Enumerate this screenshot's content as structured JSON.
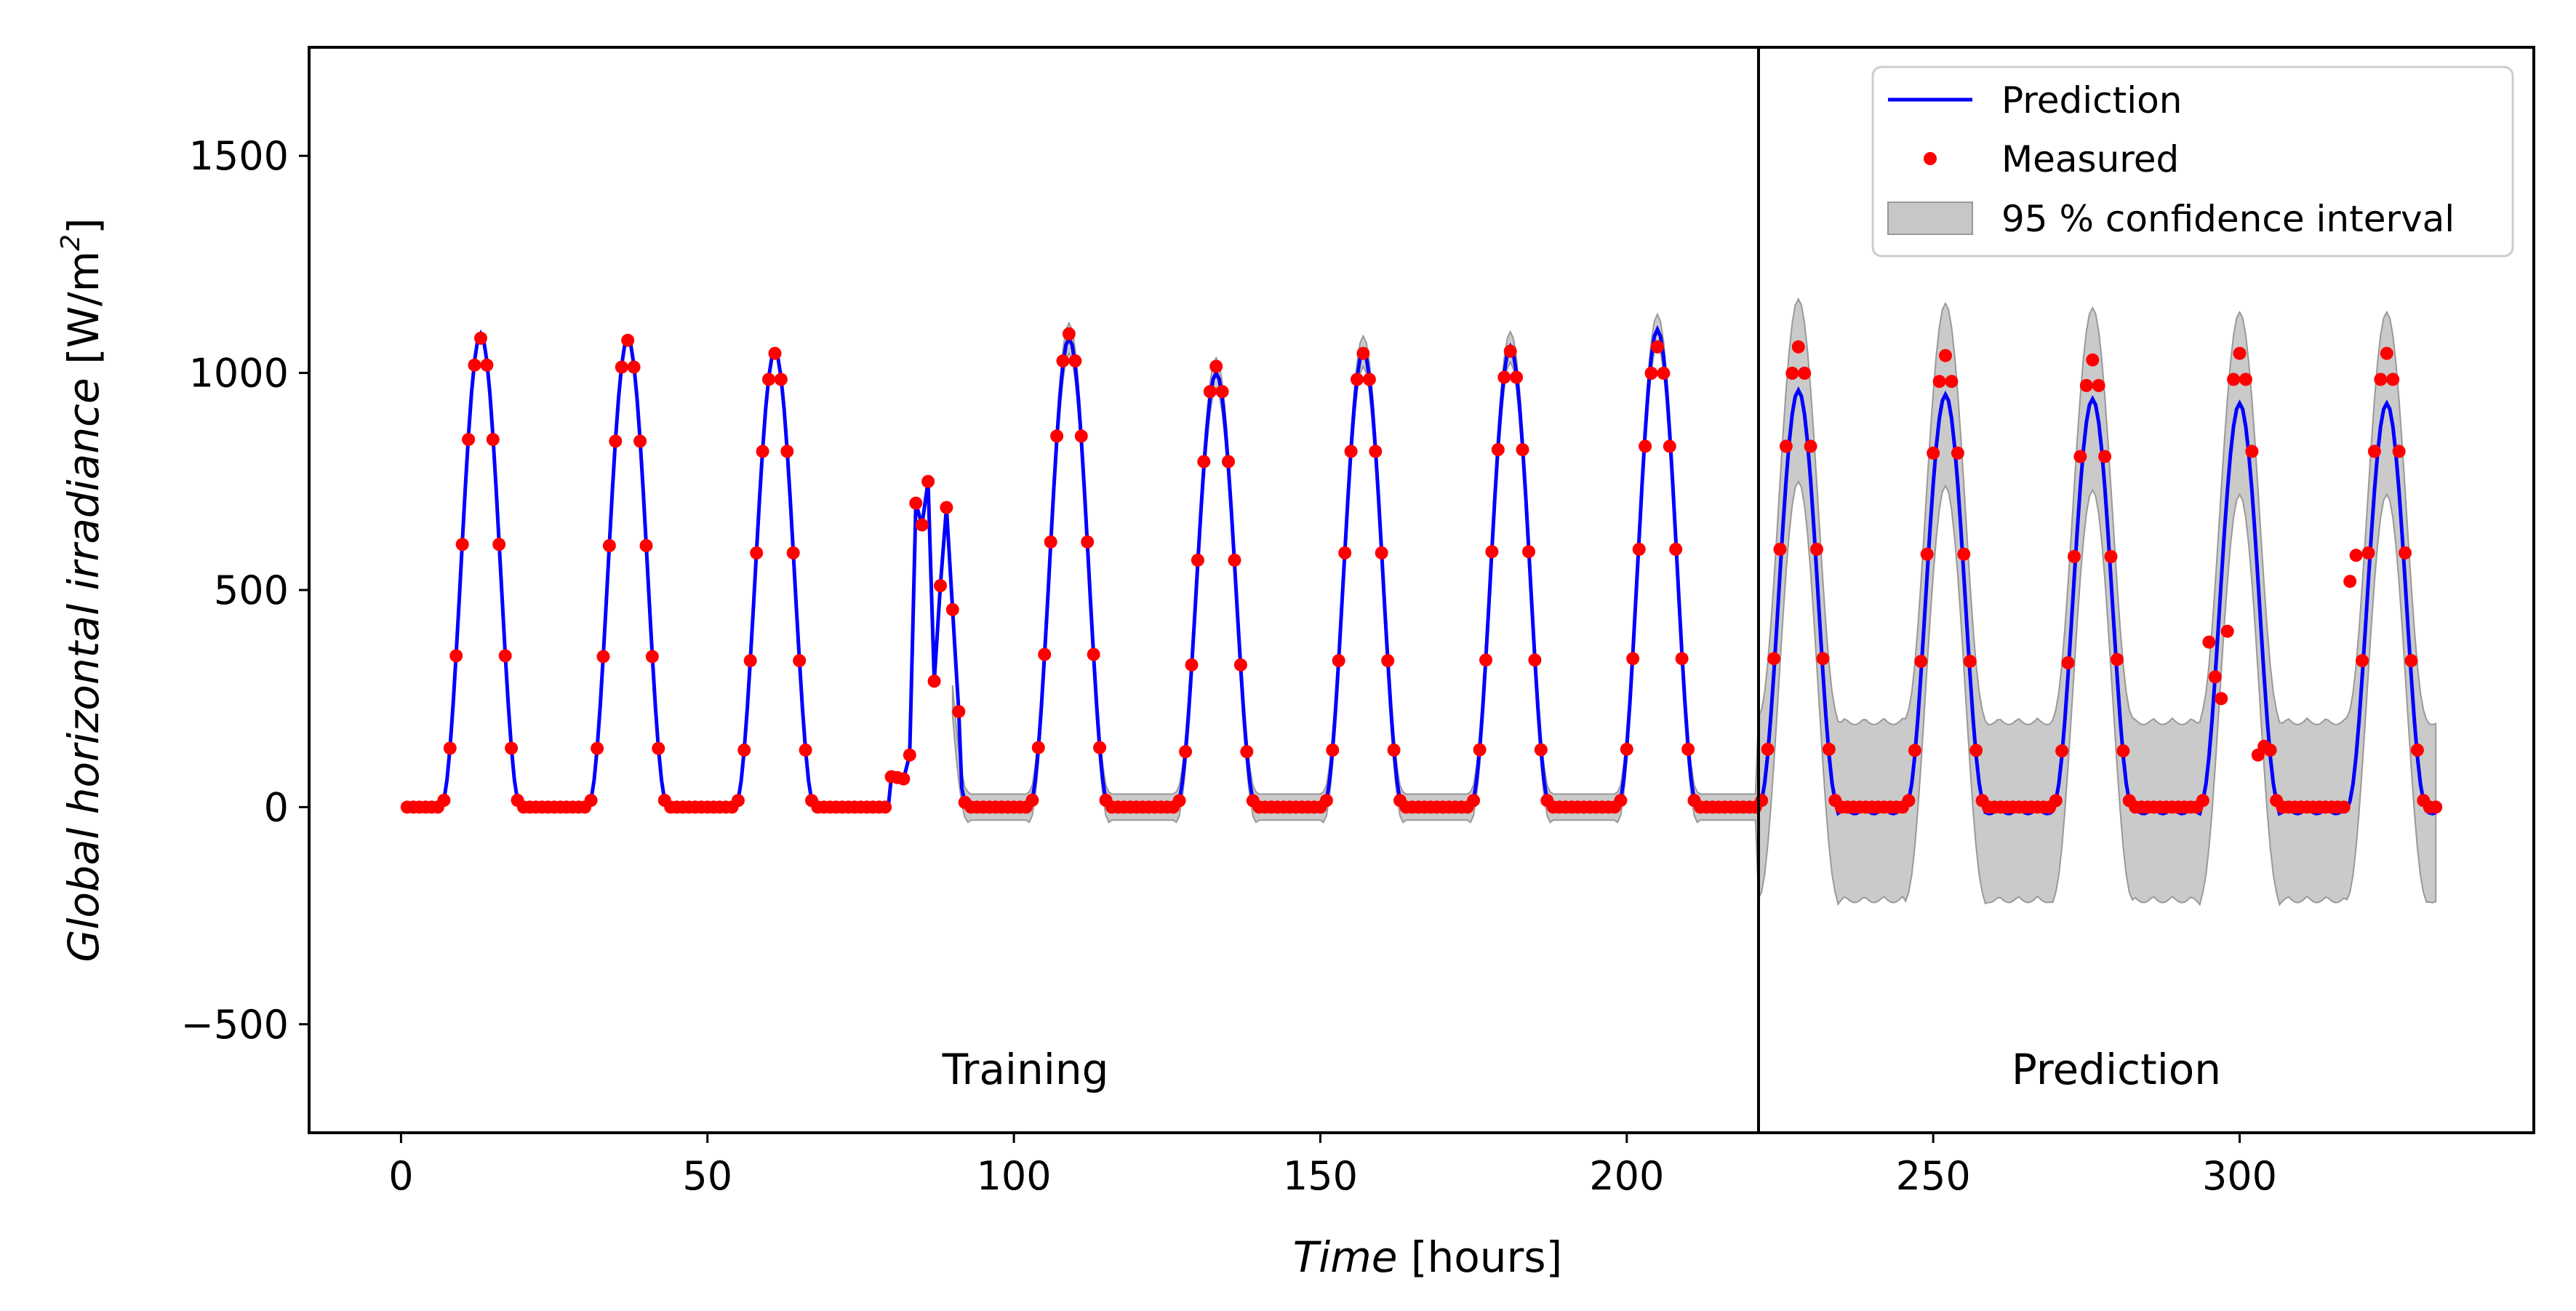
{
  "chart_data": {
    "type": "line",
    "xlabel": "Time [hours]",
    "xlabel_parts": {
      "main": "Time",
      "unit": "[hours]"
    },
    "ylabel": "Global horizontal irradiance [W/m2]",
    "ylabel_parts": {
      "main": "Global horizontal irradiance",
      "unit_open": "[W/m",
      "unit_sup": "2",
      "unit_close": "]"
    },
    "xlim": [
      -15,
      348
    ],
    "ylim": [
      -750,
      1750
    ],
    "xticks": [
      0,
      50,
      100,
      150,
      200,
      250,
      300
    ],
    "yticks": [
      -500,
      0,
      500,
      1000,
      1500
    ],
    "ytick_labels": [
      "−500",
      "0",
      "500",
      "1000",
      "1500"
    ],
    "split_x": 221.5,
    "regions": {
      "training": "Training",
      "prediction": "Prediction"
    },
    "legend": {
      "position": "top-right",
      "entries": [
        "Prediction",
        "Measured",
        "95 % confidence interval"
      ]
    },
    "colors": {
      "prediction": "#0000ff",
      "measured": "#ff0000",
      "confidence": "#b4b4b4"
    },
    "day_peaks_measured": [
      1080,
      1075,
      1045,
      750,
      1090,
      1015,
      1045,
      1050,
      1060,
      1060,
      1040,
      1030,
      1045
    ],
    "day_peaks_predicted": [
      1090,
      1080,
      1050,
      760,
      1080,
      1000,
      1050,
      1060,
      1100,
      960,
      950,
      940,
      930
    ],
    "cloudy_day_points": [
      [
        80,
        70
      ],
      [
        81,
        68
      ],
      [
        82,
        65
      ],
      [
        83,
        120
      ],
      [
        84,
        700
      ],
      [
        85,
        650
      ],
      [
        86,
        750
      ],
      [
        87,
        290
      ],
      [
        88,
        510
      ],
      [
        89,
        690
      ],
      [
        90,
        455
      ],
      [
        91,
        220
      ]
    ],
    "anomalous_measured_points": [
      [
        295,
        380
      ],
      [
        296,
        300
      ],
      [
        297,
        250
      ],
      [
        298,
        405
      ],
      [
        303,
        120
      ],
      [
        304,
        140
      ],
      [
        318,
        520
      ],
      [
        319,
        580
      ],
      [
        280,
        340
      ]
    ]
  }
}
